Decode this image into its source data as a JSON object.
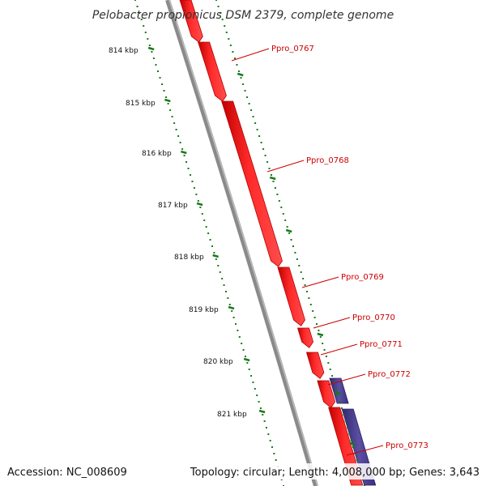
{
  "header": {
    "title": "Pelobacter propionicus DSM 2379, complete genome"
  },
  "footer": {
    "accession": "Accession: NC_008609",
    "summary": "Topology: circular; Length: 4,008,000 bp; Genes: 3,643"
  },
  "scale": {
    "unit": "kbp",
    "ticks": [
      "814 kbp",
      "815 kbp",
      "816 kbp",
      "817 kbp",
      "818 kbp",
      "819 kbp",
      "820 kbp",
      "821 kbp"
    ],
    "tick_color": "#1a7a1a"
  },
  "genes": [
    {
      "label": "Ppro_0767",
      "strand": "forward"
    },
    {
      "label": "Ppro_0768",
      "strand": "forward"
    },
    {
      "label": "Ppro_0769",
      "strand": "forward"
    },
    {
      "label": "Ppro_0770",
      "strand": "forward"
    },
    {
      "label": "Ppro_0771",
      "strand": "forward"
    },
    {
      "label": "Ppro_0772",
      "strand": "reverse"
    },
    {
      "label": "Ppro_0773",
      "strand": "forward"
    }
  ],
  "colors": {
    "forward_gene": "#ff0000",
    "reverse_gene": "#4b3f8f",
    "backbone": "#888888",
    "label": "#cc0000",
    "leader": "#cc0000"
  }
}
